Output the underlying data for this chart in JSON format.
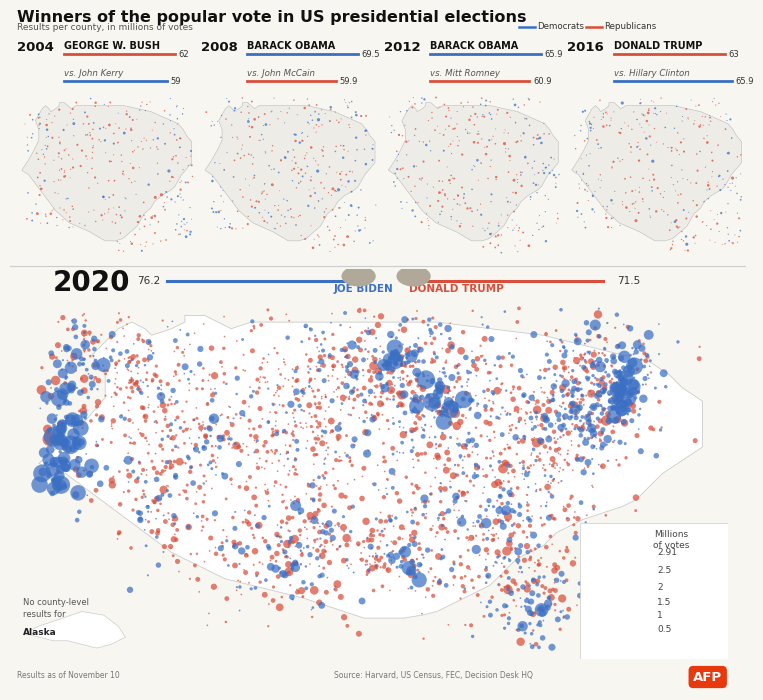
{
  "title": "Winners of the popular vote in US presidential elections",
  "subtitle": "Results per county, in millions of votes",
  "legend_dem": "Democrats",
  "legend_rep": "Republicans",
  "dem_color": "#3a6fc4",
  "rep_color": "#d94e3a",
  "bg_color": "#f7f6f1",
  "elections_small": [
    {
      "year": "2004",
      "winner": "George W. Bush",
      "winner_party": "rep",
      "winner_votes": "62",
      "loser": "vs. John Kerry",
      "loser_party": "dem",
      "loser_votes": "59"
    },
    {
      "year": "2008",
      "winner": "Barack Obama",
      "winner_party": "dem",
      "winner_votes": "69.5",
      "loser": "vs. John McCain",
      "loser_party": "rep",
      "loser_votes": "59.9"
    },
    {
      "year": "2012",
      "winner": "Barack Obama",
      "winner_party": "dem",
      "winner_votes": "65.9",
      "loser": "vs. Mitt Romney",
      "loser_party": "rep",
      "loser_votes": "60.9"
    },
    {
      "year": "2016",
      "winner": "Donald Trump",
      "winner_party": "rep",
      "winner_votes": "63",
      "loser": "vs. Hillary Clinton",
      "loser_party": "dem",
      "loser_votes": "65.9"
    }
  ],
  "election_2020": {
    "year": "2020",
    "dem_candidate": "Joe Biden",
    "rep_candidate": "Donald Trump",
    "dem_votes": "76.2",
    "rep_votes": "71.5"
  },
  "legend_sizes": [
    2.91,
    2.5,
    2.0,
    1.5,
    1.0,
    0.5
  ],
  "legend_labels": [
    "2.91",
    "2.5",
    "2",
    "1.5",
    "1",
    "0.5"
  ],
  "alaska_note": "No county-level\nresults for\nAlaska",
  "footer_left": "Results as of November 10",
  "footer_source": "Source: Harvard, US Census, FEC, Decision Desk HQ",
  "afp_color": "#e8380d"
}
